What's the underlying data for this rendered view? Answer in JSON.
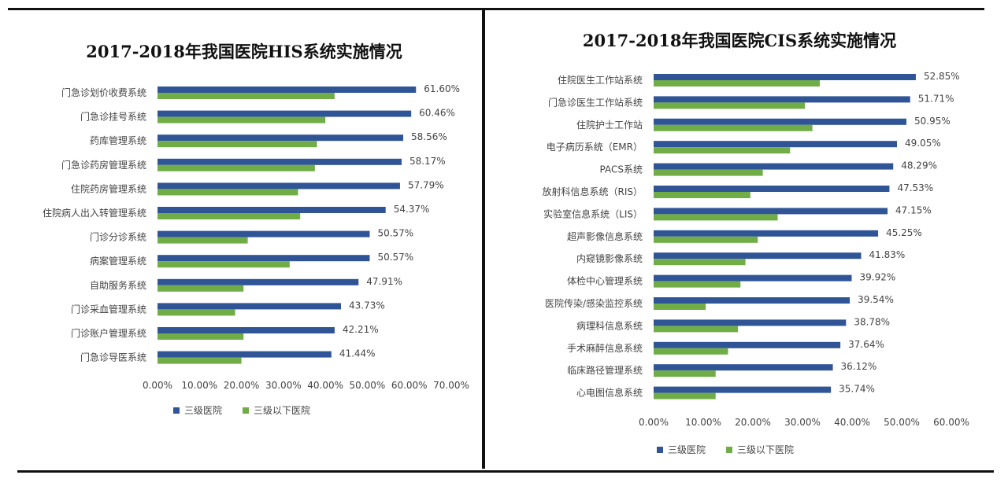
{
  "colors": {
    "primary": "#2f5597",
    "secondary": "#70ad47",
    "text": "#444444",
    "rule": "#111111"
  },
  "chart_data": [
    {
      "type": "bar",
      "orientation": "horizontal",
      "title": "2017-2018年我国医院HIS系统实施情况",
      "categories": [
        "门急诊划价收费系统",
        "门急诊挂号系统",
        "药库管理系统",
        "门急诊药房管理系统",
        "住院药房管理系统",
        "住院病人出入转管理系统",
        "门诊分诊系统",
        "病案管理系统",
        "自助服务系统",
        "门诊采血管理系统",
        "门诊账户管理系统",
        "门急诊导医系统"
      ],
      "series": [
        {
          "name": "三级医院",
          "color": "#2f5597",
          "values": [
            61.6,
            60.46,
            58.56,
            58.17,
            57.79,
            54.37,
            50.57,
            50.57,
            47.91,
            43.73,
            42.21,
            41.44
          ],
          "labels": [
            "61.60%",
            "60.46%",
            "58.56%",
            "58.17%",
            "57.79%",
            "54.37%",
            "50.57%",
            "50.57%",
            "47.91%",
            "43.73%",
            "42.21%",
            "41.44%"
          ]
        },
        {
          "name": "三级以下医院",
          "color": "#70ad47",
          "values": [
            42.2,
            40.0,
            38.0,
            37.5,
            33.5,
            34.0,
            21.5,
            31.5,
            20.5,
            18.5,
            20.5,
            20.0
          ]
        }
      ],
      "xlim": [
        0,
        70
      ],
      "xticks": [
        "0.00%",
        "10.00%",
        "20.00%",
        "30.00%",
        "40.00%",
        "50.00%",
        "60.00%",
        "70.00%"
      ],
      "legend_position": "bottom-left"
    },
    {
      "type": "bar",
      "orientation": "horizontal",
      "title": "2017-2018年我国医院CIS系统实施情况",
      "categories": [
        "住院医生工作站系统",
        "门急诊医生工作站系统",
        "住院护士工作站",
        "电子病历系统（EMR）",
        "PACS系统",
        "放射科信息系统（RIS）",
        "实验室信息系统（LIS）",
        "超声影像信息系统",
        "内窥镜影像系统",
        "体检中心管理系统",
        "医院传染/感染监控系统",
        "病理科信息系统",
        "手术麻醉信息系统",
        "临床路径管理系统",
        "心电图信息系统"
      ],
      "series": [
        {
          "name": "三级医院",
          "color": "#2f5597",
          "values": [
            52.85,
            51.71,
            50.95,
            49.05,
            48.29,
            47.53,
            47.15,
            45.25,
            41.83,
            39.92,
            39.54,
            38.78,
            37.64,
            36.12,
            35.74
          ],
          "labels": [
            "52.85%",
            "51.71%",
            "50.95%",
            "49.05%",
            "48.29%",
            "47.53%",
            "47.15%",
            "45.25%",
            "41.83%",
            "39.92%",
            "39.54%",
            "38.78%",
            "37.64%",
            "36.12%",
            "35.74%"
          ]
        },
        {
          "name": "三级以下医院",
          "color": "#70ad47",
          "values": [
            33.5,
            30.5,
            32.0,
            27.5,
            22.0,
            19.5,
            25.0,
            21.0,
            18.5,
            17.5,
            10.5,
            17.0,
            15.0,
            12.5,
            12.5
          ]
        }
      ],
      "xlim": [
        0,
        60
      ],
      "xticks": [
        "0.00%",
        "10.00%",
        "20.00%",
        "30.00%",
        "40.00%",
        "50.00%",
        "60.00%"
      ],
      "legend_position": "bottom-left"
    }
  ]
}
